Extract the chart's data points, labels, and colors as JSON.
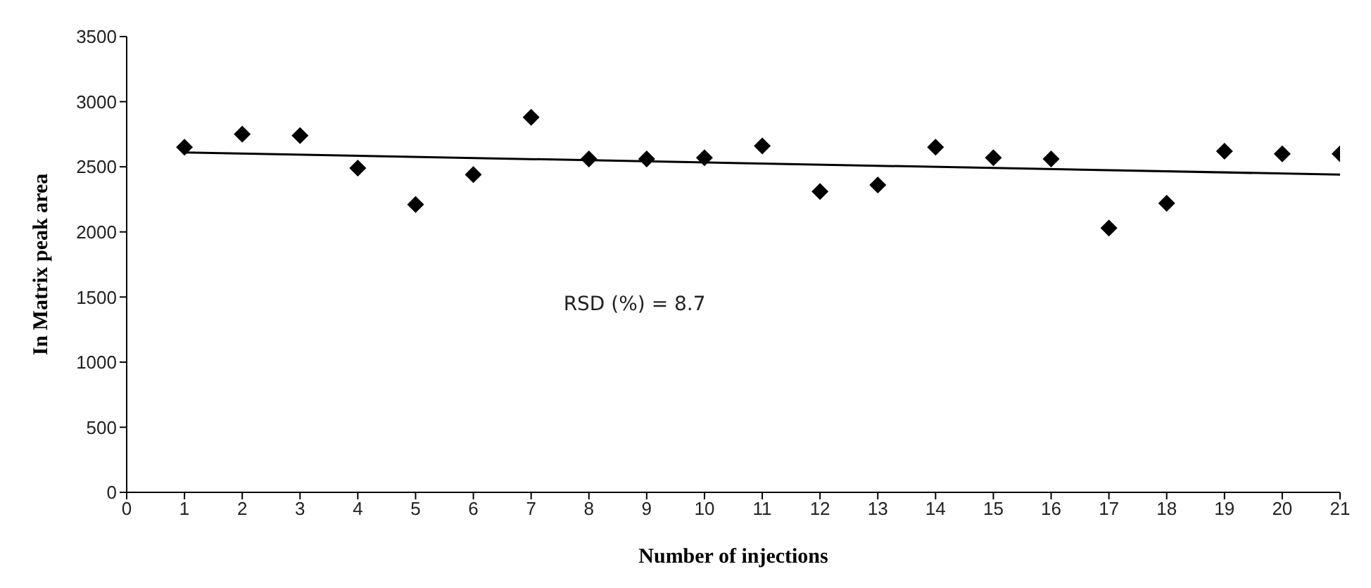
{
  "chart_data": {
    "type": "scatter",
    "xlabel": "Number of injections",
    "ylabel": "In Matrix peak area",
    "x": [
      1,
      2,
      3,
      4,
      5,
      6,
      7,
      8,
      9,
      10,
      11,
      12,
      13,
      14,
      15,
      16,
      17,
      18,
      19,
      20,
      21
    ],
    "series": [
      {
        "color": "#000000",
        "values": [
          2650,
          2750,
          2740,
          2490,
          2210,
          2440,
          2880,
          2560,
          2560,
          2570,
          2660,
          2310,
          2360,
          2650,
          2570,
          2560,
          2030,
          2220,
          2620,
          2600,
          2600
        ]
      },
      {
        "type": "line",
        "color": "#000000",
        "x": [
          1,
          21
        ],
        "values": [
          2610,
          2440
        ],
        "marker": "none"
      }
    ],
    "xlim": [
      0,
      21
    ],
    "xticks": [
      0,
      1,
      2,
      3,
      4,
      5,
      6,
      7,
      8,
      9,
      10,
      11,
      12,
      13,
      14,
      15,
      16,
      17,
      18,
      19,
      20,
      21
    ],
    "ylim": [
      0,
      3500
    ],
    "yticks": [
      0,
      500,
      1000,
      1500,
      2000,
      2500,
      3000,
      3500
    ],
    "marker": "diamond",
    "grid": false,
    "legend": false,
    "annotations": [
      "RSD (%) = 8.7"
    ]
  }
}
